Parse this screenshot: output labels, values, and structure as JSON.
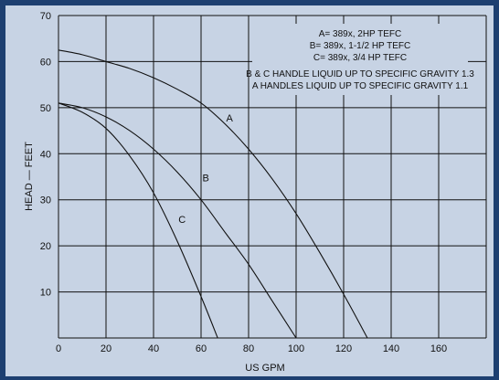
{
  "chart_data": {
    "type": "line",
    "title": "",
    "xlabel": "US GPM",
    "ylabel": "HEAD — FEET",
    "xlim": [
      0,
      180
    ],
    "ylim": [
      0,
      70
    ],
    "x_ticks": [
      0,
      20,
      40,
      60,
      80,
      100,
      120,
      140,
      160
    ],
    "y_ticks": [
      10,
      20,
      30,
      40,
      50,
      60,
      70
    ],
    "grid": true,
    "legend_placement": "top-right",
    "legend_lines": [
      "A= 389x, 2HP TEFC",
      "B= 389x, 1-1/2 HP TEFC",
      "C= 389x, 3/4 HP TEFC"
    ],
    "notes": [
      "B & C HANDLE LIQUID UP TO SPECIFIC GRAVITY 1.3",
      "A HANDLES LIQUID UP TO SPECIFIC GRAVITY 1.1"
    ],
    "series": [
      {
        "name": "A",
        "label_at": [
          72,
          47
        ],
        "x": [
          0,
          10,
          20,
          30,
          40,
          50,
          60,
          70,
          80,
          90,
          100,
          110,
          120,
          130
        ],
        "y": [
          62.5,
          61.5,
          60,
          58.5,
          56.5,
          54,
          51,
          46.5,
          41,
          34.5,
          27,
          18.5,
          9.5,
          0
        ]
      },
      {
        "name": "B",
        "label_at": [
          62,
          34
        ],
        "x": [
          0,
          10,
          20,
          30,
          40,
          50,
          60,
          70,
          80,
          90,
          100
        ],
        "y": [
          51,
          50,
          48,
          45,
          41,
          36,
          30,
          23,
          16,
          8,
          0
        ]
      },
      {
        "name": "C",
        "label_at": [
          52,
          25
        ],
        "x": [
          0,
          10,
          20,
          30,
          40,
          50,
          60,
          67
        ],
        "y": [
          51,
          49,
          45.5,
          39.5,
          31.5,
          21,
          9,
          0
        ]
      }
    ]
  }
}
